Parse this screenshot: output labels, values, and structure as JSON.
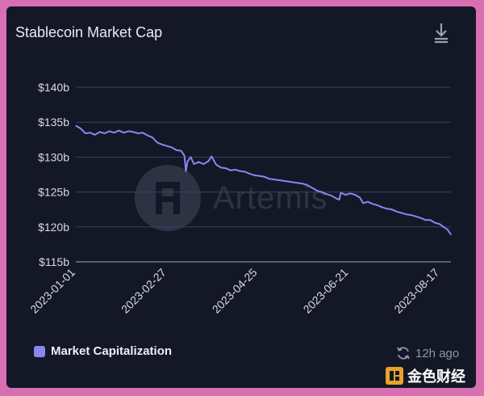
{
  "card": {
    "title": "Stablecoin Market Cap",
    "download_icon": "download-icon"
  },
  "watermark": {
    "text": "Artemis"
  },
  "legend": {
    "label": "Market Capitalization",
    "color": "#8a86f0"
  },
  "updated": {
    "icon": "refresh-icon",
    "text": "12h ago"
  },
  "brand_badge": {
    "text": "金色财经"
  },
  "colors": {
    "background": "#141726",
    "grid": "#3a3f6b",
    "line": "#8a86f0",
    "frame": "#d96fb3"
  },
  "chart_data": {
    "type": "line",
    "title": "Stablecoin Market Cap",
    "xlabel": "",
    "ylabel": "",
    "x_ticks": [
      "2023-01-01",
      "2023-02-27",
      "2023-04-25",
      "2023-06-21",
      "2023-08-17"
    ],
    "y_ticks": [
      "$115b",
      "$120b",
      "$125b",
      "$130b",
      "$135b",
      "$140b"
    ],
    "ylim": [
      115,
      140
    ],
    "xlim": [
      "2023-01-01",
      "2023-08-24"
    ],
    "grid": true,
    "legend_position": "bottom-left",
    "series": [
      {
        "name": "Market Capitalization",
        "color": "#8a86f0",
        "points": [
          [
            "2023-01-01",
            134.5
          ],
          [
            "2023-01-04",
            134.1
          ],
          [
            "2023-01-07",
            133.4
          ],
          [
            "2023-01-10",
            133.5
          ],
          [
            "2023-01-13",
            133.2
          ],
          [
            "2023-01-16",
            133.6
          ],
          [
            "2023-01-19",
            133.4
          ],
          [
            "2023-01-22",
            133.7
          ],
          [
            "2023-01-25",
            133.5
          ],
          [
            "2023-01-28",
            133.8
          ],
          [
            "2023-01-31",
            133.5
          ],
          [
            "2023-02-03",
            133.7
          ],
          [
            "2023-02-06",
            133.6
          ],
          [
            "2023-02-09",
            133.4
          ],
          [
            "2023-02-12",
            133.5
          ],
          [
            "2023-02-15",
            133.1
          ],
          [
            "2023-02-18",
            132.8
          ],
          [
            "2023-02-21",
            132.1
          ],
          [
            "2023-02-24",
            131.8
          ],
          [
            "2023-02-27",
            131.6
          ],
          [
            "2023-03-02",
            131.4
          ],
          [
            "2023-03-05",
            131.0
          ],
          [
            "2023-03-08",
            130.9
          ],
          [
            "2023-03-10",
            130.2
          ],
          [
            "2023-03-11",
            128.0
          ],
          [
            "2023-03-12",
            129.4
          ],
          [
            "2023-03-14",
            130.0
          ],
          [
            "2023-03-16",
            129.0
          ],
          [
            "2023-03-19",
            129.3
          ],
          [
            "2023-03-22",
            129.0
          ],
          [
            "2023-03-25",
            129.4
          ],
          [
            "2023-03-27",
            130.1
          ],
          [
            "2023-03-30",
            128.9
          ],
          [
            "2023-04-02",
            128.5
          ],
          [
            "2023-04-05",
            128.4
          ],
          [
            "2023-04-08",
            128.1
          ],
          [
            "2023-04-11",
            128.2
          ],
          [
            "2023-04-14",
            128.0
          ],
          [
            "2023-04-17",
            127.9
          ],
          [
            "2023-04-20",
            127.6
          ],
          [
            "2023-04-23",
            127.4
          ],
          [
            "2023-04-26",
            127.3
          ],
          [
            "2023-04-29",
            127.2
          ],
          [
            "2023-05-02",
            126.9
          ],
          [
            "2023-05-05",
            126.8
          ],
          [
            "2023-05-08",
            126.7
          ],
          [
            "2023-05-11",
            126.6
          ],
          [
            "2023-05-14",
            126.5
          ],
          [
            "2023-05-17",
            126.4
          ],
          [
            "2023-05-20",
            126.3
          ],
          [
            "2023-05-23",
            126.2
          ],
          [
            "2023-05-26",
            126.0
          ],
          [
            "2023-05-29",
            125.6
          ],
          [
            "2023-06-01",
            125.2
          ],
          [
            "2023-06-04",
            125.0
          ],
          [
            "2023-06-07",
            124.7
          ],
          [
            "2023-06-10",
            124.5
          ],
          [
            "2023-06-13",
            124.1
          ],
          [
            "2023-06-15",
            123.9
          ],
          [
            "2023-06-16",
            124.9
          ],
          [
            "2023-06-19",
            124.6
          ],
          [
            "2023-06-22",
            124.8
          ],
          [
            "2023-06-25",
            124.6
          ],
          [
            "2023-06-28",
            124.2
          ],
          [
            "2023-06-30",
            123.4
          ],
          [
            "2023-07-03",
            123.6
          ],
          [
            "2023-07-06",
            123.3
          ],
          [
            "2023-07-09",
            123.1
          ],
          [
            "2023-07-12",
            122.8
          ],
          [
            "2023-07-15",
            122.6
          ],
          [
            "2023-07-18",
            122.5
          ],
          [
            "2023-07-21",
            122.2
          ],
          [
            "2023-07-24",
            122.0
          ],
          [
            "2023-07-27",
            121.8
          ],
          [
            "2023-07-30",
            121.7
          ],
          [
            "2023-08-02",
            121.5
          ],
          [
            "2023-08-05",
            121.3
          ],
          [
            "2023-08-08",
            121.0
          ],
          [
            "2023-08-11",
            121.0
          ],
          [
            "2023-08-14",
            120.6
          ],
          [
            "2023-08-17",
            120.4
          ],
          [
            "2023-08-20",
            119.9
          ],
          [
            "2023-08-22",
            119.6
          ],
          [
            "2023-08-24",
            118.9
          ]
        ]
      }
    ]
  }
}
